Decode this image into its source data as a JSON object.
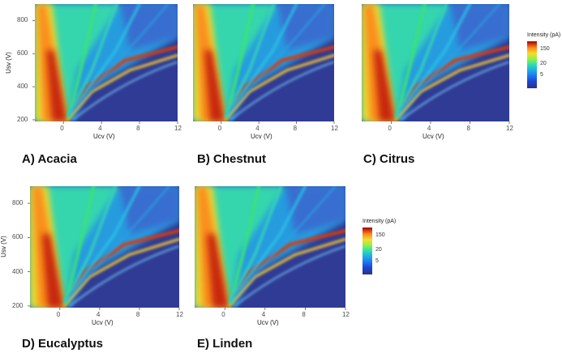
{
  "colors": {
    "background": "#2b3a9a",
    "high": "#b31d0a",
    "mid": "#f2e21a",
    "low": "#22d8c4"
  },
  "chart_data": [
    {
      "type": "heatmap",
      "caption": "A) Acacia",
      "xlabel": "Ucv (V)",
      "ylabel": "Usv (V)",
      "xlim": [
        -3,
        12
      ],
      "ylim": [
        190,
        900
      ],
      "xticks": [
        "0",
        "4",
        "8",
        "12"
      ],
      "yticks": [
        "200",
        "400",
        "600",
        "800"
      ],
      "x_tick_values": [
        0,
        4,
        8,
        12
      ],
      "y_tick_values": [
        200,
        400,
        600,
        800
      ]
    },
    {
      "type": "heatmap",
      "caption": "B) Chestnut",
      "xlabel": "Ucv (V)",
      "ylabel": "",
      "xlim": [
        -3,
        12
      ],
      "ylim": [
        190,
        900
      ],
      "xticks": [
        "0",
        "4",
        "8",
        "12"
      ],
      "yticks": [],
      "x_tick_values": [
        0,
        4,
        8,
        12
      ],
      "y_tick_values": []
    },
    {
      "type": "heatmap",
      "caption": "C) Citrus",
      "xlabel": "Ucv (V)",
      "ylabel": "",
      "xlim": [
        -3,
        12
      ],
      "ylim": [
        190,
        900
      ],
      "xticks": [
        "0",
        "4",
        "8",
        "12"
      ],
      "yticks": [],
      "x_tick_values": [
        0,
        4,
        8,
        12
      ],
      "y_tick_values": []
    },
    {
      "type": "heatmap",
      "caption": "D) Eucalyptus",
      "xlabel": "Ucv (V)",
      "ylabel": "Usv (V)",
      "xlim": [
        -3,
        12
      ],
      "ylim": [
        190,
        900
      ],
      "xticks": [
        "0",
        "4",
        "8",
        "12"
      ],
      "yticks": [
        "200",
        "400",
        "600",
        "800"
      ],
      "x_tick_values": [
        0,
        4,
        8,
        12
      ],
      "y_tick_values": [
        200,
        400,
        600,
        800
      ]
    },
    {
      "type": "heatmap",
      "caption": "E) Linden",
      "xlabel": "Ucv (V)",
      "ylabel": "",
      "xlim": [
        -3,
        12
      ],
      "ylim": [
        190,
        900
      ],
      "xticks": [
        "0",
        "4",
        "8",
        "12"
      ],
      "yticks": [],
      "x_tick_values": [
        0,
        4,
        8,
        12
      ],
      "y_tick_values": []
    }
  ],
  "legends": [
    {
      "title": "Intensity (pA)",
      "labels": [
        "150",
        "20",
        "5"
      ],
      "values": [
        150,
        20,
        5
      ],
      "scale": "log"
    },
    {
      "title": "Intensity (pA)",
      "labels": [
        "150",
        "20",
        "5"
      ],
      "values": [
        150,
        20,
        5
      ],
      "scale": "log"
    }
  ]
}
